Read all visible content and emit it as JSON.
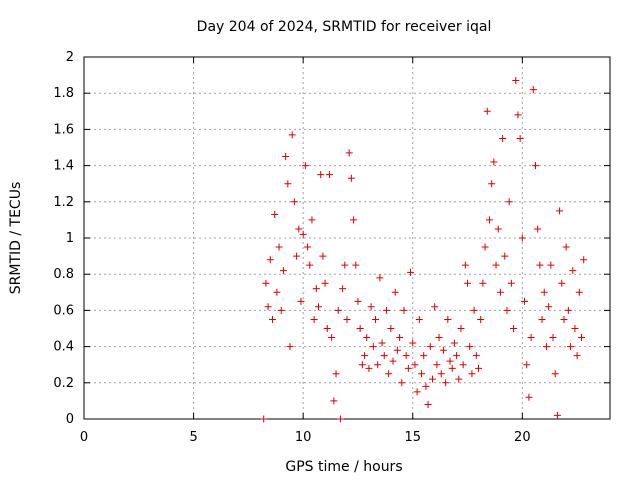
{
  "chart_data": {
    "type": "scatter",
    "title": "Day 204 of 2024, SRMTID for receiver iqal",
    "xlabel": "GPS time / hours",
    "ylabel": "SRMTID / TECUs",
    "xlim": [
      0,
      24
    ],
    "ylim": [
      0,
      2
    ],
    "xticks": [
      0,
      5,
      10,
      15,
      20
    ],
    "xtick_labels": [
      "0",
      "5",
      "10",
      "15",
      "20"
    ],
    "yticks": [
      0,
      0.2,
      0.4,
      0.6,
      0.8,
      1,
      1.2,
      1.4,
      1.6,
      1.8,
      2
    ],
    "ytick_labels": [
      "0",
      "0.2",
      "0.4",
      "0.6",
      "0.8",
      "1",
      "1.2",
      "1.4",
      "1.6",
      "1.8",
      "2"
    ],
    "grid": true,
    "marker": "plus",
    "series": [
      {
        "name": "SRMTID",
        "color": "#e00000",
        "points": [
          [
            8.2,
            0.0
          ],
          [
            11.7,
            0.0
          ],
          [
            8.3,
            0.75
          ],
          [
            8.4,
            0.62
          ],
          [
            8.5,
            0.88
          ],
          [
            8.6,
            0.55
          ],
          [
            8.7,
            1.13
          ],
          [
            8.8,
            0.7
          ],
          [
            8.9,
            0.95
          ],
          [
            9.0,
            0.6
          ],
          [
            9.1,
            0.82
          ],
          [
            9.2,
            1.45
          ],
          [
            9.3,
            1.3
          ],
          [
            9.4,
            0.4
          ],
          [
            9.5,
            1.57
          ],
          [
            9.6,
            1.2
          ],
          [
            9.7,
            0.9
          ],
          [
            9.8,
            1.05
          ],
          [
            9.9,
            0.65
          ],
          [
            10.0,
            1.02
          ],
          [
            10.1,
            1.4
          ],
          [
            10.2,
            0.95
          ],
          [
            10.3,
            0.85
          ],
          [
            10.4,
            1.1
          ],
          [
            10.5,
            0.55
          ],
          [
            10.6,
            0.72
          ],
          [
            10.7,
            0.62
          ],
          [
            10.8,
            1.35
          ],
          [
            10.9,
            0.9
          ],
          [
            11.0,
            0.75
          ],
          [
            11.1,
            0.5
          ],
          [
            11.2,
            1.35
          ],
          [
            11.3,
            0.45
          ],
          [
            11.4,
            0.1
          ],
          [
            11.5,
            0.25
          ],
          [
            11.6,
            0.6
          ],
          [
            11.8,
            0.72
          ],
          [
            11.9,
            0.85
          ],
          [
            12.0,
            0.55
          ],
          [
            12.1,
            1.47
          ],
          [
            12.2,
            1.33
          ],
          [
            12.3,
            1.1
          ],
          [
            12.4,
            0.85
          ],
          [
            12.5,
            0.65
          ],
          [
            12.6,
            0.5
          ],
          [
            12.7,
            0.3
          ],
          [
            12.8,
            0.35
          ],
          [
            12.9,
            0.45
          ],
          [
            13.0,
            0.28
          ],
          [
            13.1,
            0.62
          ],
          [
            13.2,
            0.4
          ],
          [
            13.3,
            0.55
          ],
          [
            13.4,
            0.3
          ],
          [
            13.5,
            0.78
          ],
          [
            13.6,
            0.42
          ],
          [
            13.7,
            0.35
          ],
          [
            13.8,
            0.6
          ],
          [
            13.9,
            0.25
          ],
          [
            14.0,
            0.5
          ],
          [
            14.1,
            0.32
          ],
          [
            14.2,
            0.7
          ],
          [
            14.3,
            0.38
          ],
          [
            14.4,
            0.45
          ],
          [
            14.5,
            0.2
          ],
          [
            14.6,
            0.6
          ],
          [
            14.7,
            0.35
          ],
          [
            14.8,
            0.28
          ],
          [
            14.9,
            0.81
          ],
          [
            15.0,
            0.42
          ],
          [
            15.1,
            0.3
          ],
          [
            15.2,
            0.15
          ],
          [
            15.3,
            0.55
          ],
          [
            15.4,
            0.25
          ],
          [
            15.5,
            0.35
          ],
          [
            15.6,
            0.18
          ],
          [
            15.7,
            0.08
          ],
          [
            15.8,
            0.4
          ],
          [
            15.9,
            0.22
          ],
          [
            16.0,
            0.62
          ],
          [
            16.1,
            0.3
          ],
          [
            16.2,
            0.45
          ],
          [
            16.3,
            0.25
          ],
          [
            16.4,
            0.38
          ],
          [
            16.5,
            0.2
          ],
          [
            16.6,
            0.55
          ],
          [
            16.7,
            0.32
          ],
          [
            16.8,
            0.28
          ],
          [
            16.9,
            0.42
          ],
          [
            17.0,
            0.35
          ],
          [
            17.1,
            0.22
          ],
          [
            17.2,
            0.5
          ],
          [
            17.3,
            0.3
          ],
          [
            17.4,
            0.85
          ],
          [
            17.5,
            0.75
          ],
          [
            17.6,
            0.4
          ],
          [
            17.7,
            0.25
          ],
          [
            17.8,
            0.6
          ],
          [
            17.9,
            0.35
          ],
          [
            18.0,
            0.28
          ],
          [
            18.1,
            0.55
          ],
          [
            18.2,
            0.75
          ],
          [
            18.3,
            0.95
          ],
          [
            18.4,
            1.7
          ],
          [
            18.5,
            1.1
          ],
          [
            18.6,
            1.3
          ],
          [
            18.7,
            1.42
          ],
          [
            18.8,
            0.85
          ],
          [
            18.9,
            1.05
          ],
          [
            19.0,
            0.7
          ],
          [
            19.1,
            1.55
          ],
          [
            19.2,
            0.9
          ],
          [
            19.3,
            0.6
          ],
          [
            19.4,
            1.2
          ],
          [
            19.5,
            0.75
          ],
          [
            19.6,
            0.5
          ],
          [
            19.7,
            1.87
          ],
          [
            19.8,
            1.68
          ],
          [
            19.9,
            1.55
          ],
          [
            20.0,
            1.0
          ],
          [
            20.1,
            0.65
          ],
          [
            20.2,
            0.3
          ],
          [
            20.3,
            0.12
          ],
          [
            20.4,
            0.45
          ],
          [
            20.5,
            1.82
          ],
          [
            20.6,
            1.4
          ],
          [
            20.7,
            1.05
          ],
          [
            20.8,
            0.85
          ],
          [
            20.9,
            0.55
          ],
          [
            21.0,
            0.7
          ],
          [
            21.1,
            0.4
          ],
          [
            21.2,
            0.62
          ],
          [
            21.3,
            0.85
          ],
          [
            21.4,
            0.45
          ],
          [
            21.5,
            0.25
          ],
          [
            21.6,
            0.02
          ],
          [
            21.7,
            1.15
          ],
          [
            21.8,
            0.75
          ],
          [
            21.9,
            0.55
          ],
          [
            22.0,
            0.95
          ],
          [
            22.1,
            0.6
          ],
          [
            22.2,
            0.4
          ],
          [
            22.3,
            0.82
          ],
          [
            22.4,
            0.5
          ],
          [
            22.5,
            0.35
          ],
          [
            22.6,
            0.7
          ],
          [
            22.7,
            0.45
          ],
          [
            22.8,
            0.88
          ]
        ]
      }
    ]
  }
}
